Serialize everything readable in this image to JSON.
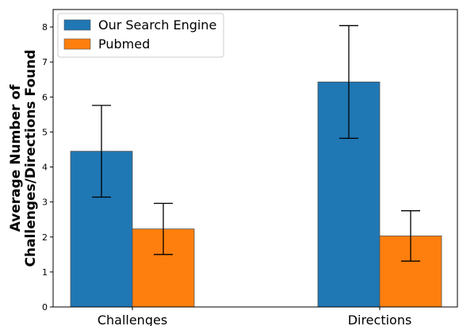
{
  "chart_data": {
    "type": "bar",
    "title": "",
    "xlabel": "",
    "ylabel_lines": [
      "Average Number of",
      "Challenges/Directions Found"
    ],
    "categories": [
      "Challenges",
      "Directions"
    ],
    "ylim": [
      0,
      8.5
    ],
    "yticks": [
      0,
      1,
      2,
      3,
      4,
      5,
      6,
      7,
      8
    ],
    "grid": false,
    "legend_position": "top-left",
    "series": [
      {
        "name": "Our Search Engine",
        "color": "#1f77b4",
        "values": [
          4.45,
          6.43
        ],
        "errors": [
          1.31,
          1.61
        ]
      },
      {
        "name": "Pubmed",
        "color": "#ff7f0e",
        "values": [
          2.23,
          2.03
        ],
        "errors": [
          0.73,
          0.72
        ]
      }
    ]
  }
}
